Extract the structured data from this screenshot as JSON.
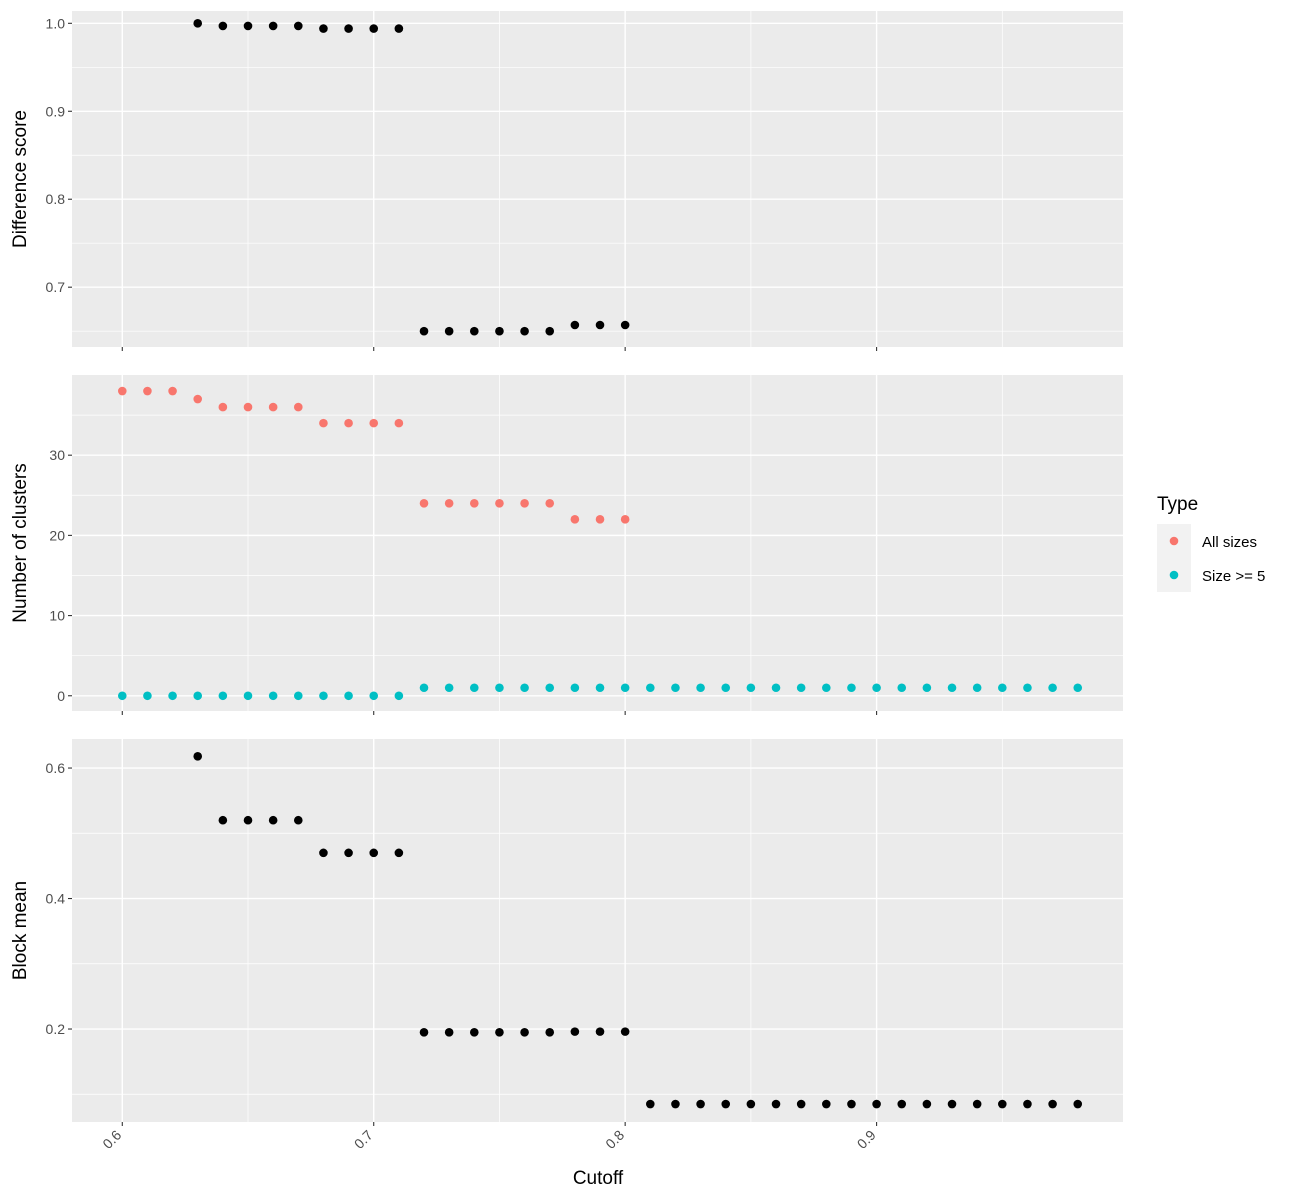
{
  "chart_data": [
    {
      "type": "scatter",
      "panel": "top",
      "ylabel": "Difference score",
      "xlabel": "",
      "xlim": [
        0.58,
        0.998
      ],
      "ylim": [
        0.632,
        1.014
      ],
      "yticks": [
        0.7,
        0.8,
        0.9,
        1.0
      ],
      "ytick_labels": [
        "0.7",
        "0.8",
        "0.9",
        "1.0"
      ],
      "series": [
        {
          "color": "#000000",
          "x": [
            0.63,
            0.64,
            0.65,
            0.66,
            0.67,
            0.68,
            0.69,
            0.7,
            0.71,
            0.72,
            0.73,
            0.74,
            0.75,
            0.76,
            0.77,
            0.78,
            0.79,
            0.8
          ],
          "y": [
            1.0,
            0.997,
            0.997,
            0.997,
            0.997,
            0.994,
            0.994,
            0.994,
            0.994,
            0.65,
            0.65,
            0.65,
            0.65,
            0.65,
            0.65,
            0.657,
            0.657,
            0.657
          ]
        }
      ]
    },
    {
      "type": "scatter",
      "panel": "middle",
      "ylabel": "Number of clusters",
      "xlabel": "",
      "xlim": [
        0.58,
        0.998
      ],
      "ylim": [
        -1.9,
        40
      ],
      "yticks": [
        0,
        10,
        20,
        30
      ],
      "ytick_labels": [
        "0",
        "10",
        "20",
        "30"
      ],
      "series": [
        {
          "name": "All sizes",
          "color": "#F8766D",
          "x": [
            0.6,
            0.61,
            0.62,
            0.63,
            0.64,
            0.65,
            0.66,
            0.67,
            0.68,
            0.69,
            0.7,
            0.71,
            0.72,
            0.73,
            0.74,
            0.75,
            0.76,
            0.77,
            0.78,
            0.79,
            0.8
          ],
          "y": [
            38,
            38,
            38,
            37,
            36,
            36,
            36,
            36,
            34,
            34,
            34,
            34,
            24,
            24,
            24,
            24,
            24,
            24,
            22,
            22,
            22
          ]
        },
        {
          "name": "Size >= 5",
          "color": "#00BFC4",
          "x": [
            0.6,
            0.61,
            0.62,
            0.63,
            0.64,
            0.65,
            0.66,
            0.67,
            0.68,
            0.69,
            0.7,
            0.71,
            0.72,
            0.73,
            0.74,
            0.75,
            0.76,
            0.77,
            0.78,
            0.79,
            0.8,
            0.81,
            0.82,
            0.83,
            0.84,
            0.85,
            0.86,
            0.87,
            0.88,
            0.89,
            0.9,
            0.91,
            0.92,
            0.93,
            0.94,
            0.95,
            0.96,
            0.97,
            0.98
          ],
          "y": [
            0,
            0,
            0,
            0,
            0,
            0,
            0,
            0,
            0,
            0,
            0,
            0,
            1,
            1,
            1,
            1,
            1,
            1,
            1,
            1,
            1,
            1,
            1,
            1,
            1,
            1,
            1,
            1,
            1,
            1,
            1,
            1,
            1,
            1,
            1,
            1,
            1,
            1,
            1
          ]
        }
      ]
    },
    {
      "type": "scatter",
      "panel": "bottom",
      "ylabel": "Block mean",
      "xlabel": "Cutoff",
      "xlim": [
        0.58,
        0.998
      ],
      "ylim": [
        0.0575,
        0.6445
      ],
      "yticks": [
        0.2,
        0.4,
        0.6
      ],
      "ytick_labels": [
        "0.2",
        "0.4",
        "0.6"
      ],
      "xticks": [
        0.6,
        0.7,
        0.8,
        0.9
      ],
      "xtick_labels": [
        "0.6",
        "0.7",
        "0.8",
        "0.9"
      ],
      "series": [
        {
          "color": "#000000",
          "x": [
            0.63,
            0.64,
            0.65,
            0.66,
            0.67,
            0.68,
            0.69,
            0.7,
            0.71,
            0.72,
            0.73,
            0.74,
            0.75,
            0.76,
            0.77,
            0.78,
            0.79,
            0.8,
            0.81,
            0.82,
            0.83,
            0.84,
            0.85,
            0.86,
            0.87,
            0.88,
            0.89,
            0.9,
            0.91,
            0.92,
            0.93,
            0.94,
            0.95,
            0.96,
            0.97,
            0.98
          ],
          "y": [
            0.618,
            0.52,
            0.52,
            0.52,
            0.52,
            0.47,
            0.47,
            0.47,
            0.47,
            0.195,
            0.195,
            0.195,
            0.195,
            0.195,
            0.195,
            0.196,
            0.196,
            0.196,
            0.085,
            0.085,
            0.085,
            0.085,
            0.085,
            0.085,
            0.085,
            0.085,
            0.085,
            0.085,
            0.085,
            0.085,
            0.085,
            0.085,
            0.085,
            0.085,
            0.085,
            0.085
          ]
        }
      ]
    }
  ],
  "legend": {
    "title": "Type",
    "items": [
      {
        "label": "All sizes",
        "color": "#F8766D"
      },
      {
        "label": "Size >= 5",
        "color": "#00BFC4"
      }
    ]
  },
  "x_axis_title": "Cutoff",
  "style": {
    "panel_background": "#EBEBEB",
    "grid_color": "#FFFFFF",
    "legend_key_background": "#F2F2F2"
  }
}
